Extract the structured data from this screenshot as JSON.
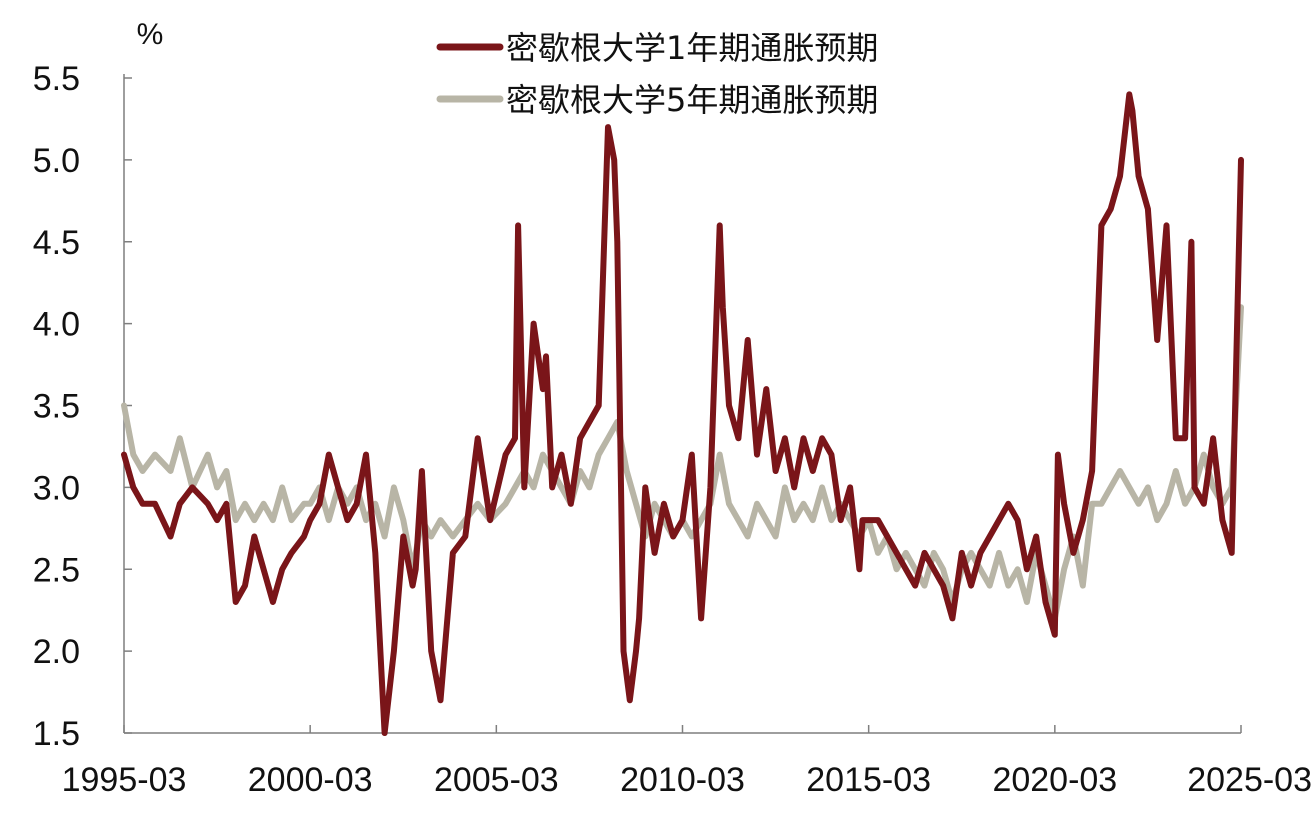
{
  "chart_data": {
    "type": "line",
    "title": "",
    "ylabel": "%",
    "xlabel": "",
    "ylim": [
      1.5,
      5.5
    ],
    "yticks": [
      "1.5",
      "2.0",
      "2.5",
      "3.0",
      "3.5",
      "4.0",
      "4.5",
      "5.0",
      "5.5"
    ],
    "xticks": [
      "1995-03",
      "2000-03",
      "2005-03",
      "2010-03",
      "2015-03",
      "2020-03",
      "2025-03"
    ],
    "xlim": [
      "1995-03",
      "2025-03"
    ],
    "legend_position": "top-center",
    "grid": false,
    "series": [
      {
        "name": "密歇根大学1年期通胀预期",
        "color": "#7a1519",
        "x": [
          "1995-03",
          "1995-06",
          "1995-09",
          "1996-01",
          "1996-06",
          "1996-09",
          "1997-01",
          "1997-06",
          "1997-09",
          "1997-12",
          "1998-03",
          "1998-06",
          "1998-09",
          "1998-12",
          "1999-03",
          "1999-06",
          "1999-09",
          "2000-01",
          "2000-03",
          "2000-06",
          "2000-09",
          "2000-12",
          "2001-03",
          "2001-06",
          "2001-09",
          "2001-10",
          "2001-12",
          "2002-03",
          "2002-06",
          "2002-09",
          "2002-12",
          "2003-01",
          "2003-03",
          "2003-06",
          "2003-09",
          "2004-01",
          "2004-05",
          "2004-09",
          "2005-01",
          "2005-06",
          "2005-09",
          "2005-10",
          "2005-12",
          "2006-03",
          "2006-06",
          "2006-07",
          "2006-09",
          "2006-12",
          "2007-03",
          "2007-06",
          "2007-09",
          "2007-12",
          "2008-03",
          "2008-05",
          "2008-06",
          "2008-08",
          "2008-10",
          "2008-12",
          "2009-01",
          "2009-03",
          "2009-06",
          "2009-09",
          "2009-12",
          "2010-03",
          "2010-06",
          "2010-09",
          "2010-12",
          "2011-03",
          "2011-04",
          "2011-06",
          "2011-09",
          "2011-12",
          "2012-03",
          "2012-06",
          "2012-09",
          "2012-12",
          "2013-03",
          "2013-06",
          "2013-09",
          "2013-12",
          "2014-03",
          "2014-06",
          "2014-09",
          "2014-12",
          "2015-01",
          "2015-06",
          "2015-09",
          "2015-12",
          "2016-03",
          "2016-06",
          "2016-09",
          "2016-12",
          "2017-03",
          "2017-06",
          "2017-09",
          "2017-12",
          "2018-03",
          "2018-06",
          "2018-09",
          "2018-12",
          "2019-03",
          "2019-06",
          "2019-09",
          "2019-12",
          "2020-03",
          "2020-04",
          "2020-06",
          "2020-09",
          "2020-12",
          "2021-03",
          "2021-06",
          "2021-09",
          "2021-12",
          "2022-03",
          "2022-04",
          "2022-06",
          "2022-09",
          "2022-12",
          "2023-03",
          "2023-06",
          "2023-09",
          "2023-11",
          "2023-12",
          "2024-03",
          "2024-06",
          "2024-09",
          "2024-12",
          "2025-03"
        ],
        "values": [
          3.2,
          3.0,
          2.9,
          2.9,
          2.7,
          2.9,
          3.0,
          2.9,
          2.8,
          2.9,
          2.3,
          2.4,
          2.7,
          2.5,
          2.3,
          2.5,
          2.6,
          2.7,
          2.8,
          2.9,
          3.2,
          3.0,
          2.8,
          2.9,
          3.2,
          3.0,
          2.6,
          1.5,
          2.0,
          2.7,
          2.4,
          2.5,
          3.1,
          2.0,
          1.7,
          2.6,
          2.7,
          3.3,
          2.8,
          3.2,
          3.3,
          4.6,
          3.0,
          4.0,
          3.6,
          3.8,
          3.0,
          3.2,
          2.9,
          3.3,
          3.4,
          3.5,
          5.2,
          5.0,
          4.5,
          2.0,
          1.7,
          2.0,
          2.2,
          3.0,
          2.6,
          2.9,
          2.7,
          2.8,
          3.2,
          2.2,
          3.0,
          4.6,
          4.1,
          3.5,
          3.3,
          3.9,
          3.2,
          3.6,
          3.1,
          3.3,
          3.0,
          3.3,
          3.1,
          3.3,
          3.2,
          2.8,
          3.0,
          2.5,
          2.8,
          2.8,
          2.7,
          2.6,
          2.5,
          2.4,
          2.6,
          2.5,
          2.4,
          2.2,
          2.6,
          2.4,
          2.6,
          2.7,
          2.8,
          2.9,
          2.8,
          2.5,
          2.7,
          2.3,
          2.1,
          3.2,
          2.9,
          2.6,
          2.8,
          3.1,
          4.6,
          4.7,
          4.9,
          5.4,
          5.3,
          4.9,
          4.7,
          3.9,
          4.6,
          3.3,
          3.3,
          4.5,
          3.0,
          2.9,
          3.3,
          2.8,
          2.6,
          5.0
        ]
      },
      {
        "name": "密歇根大学5年期通胀预期",
        "color": "#b8b5a6",
        "x": [
          "1995-03",
          "1995-06",
          "1995-09",
          "1996-01",
          "1996-06",
          "1996-09",
          "1997-01",
          "1997-06",
          "1997-09",
          "1997-12",
          "1998-03",
          "1998-06",
          "1998-09",
          "1998-12",
          "1999-03",
          "1999-06",
          "1999-09",
          "2000-01",
          "2000-03",
          "2000-06",
          "2000-09",
          "2000-12",
          "2001-03",
          "2001-06",
          "2001-09",
          "2001-12",
          "2002-03",
          "2002-06",
          "2002-09",
          "2002-12",
          "2003-03",
          "2003-06",
          "2003-09",
          "2004-01",
          "2004-05",
          "2004-09",
          "2005-01",
          "2005-06",
          "2005-09",
          "2005-12",
          "2006-03",
          "2006-06",
          "2006-09",
          "2006-12",
          "2007-03",
          "2007-06",
          "2007-09",
          "2007-12",
          "2008-03",
          "2008-06",
          "2008-09",
          "2008-12",
          "2009-03",
          "2009-06",
          "2009-09",
          "2009-12",
          "2010-03",
          "2010-06",
          "2010-09",
          "2010-12",
          "2011-03",
          "2011-06",
          "2011-09",
          "2011-12",
          "2012-03",
          "2012-06",
          "2012-09",
          "2012-12",
          "2013-03",
          "2013-06",
          "2013-09",
          "2013-12",
          "2014-03",
          "2014-06",
          "2014-09",
          "2014-12",
          "2015-03",
          "2015-06",
          "2015-09",
          "2015-12",
          "2016-03",
          "2016-06",
          "2016-09",
          "2016-12",
          "2017-03",
          "2017-06",
          "2017-09",
          "2017-12",
          "2018-03",
          "2018-06",
          "2018-09",
          "2018-12",
          "2019-03",
          "2019-06",
          "2019-09",
          "2019-12",
          "2020-03",
          "2020-06",
          "2020-09",
          "2020-12",
          "2021-03",
          "2021-06",
          "2021-09",
          "2021-12",
          "2022-03",
          "2022-06",
          "2022-09",
          "2022-12",
          "2023-03",
          "2023-06",
          "2023-09",
          "2023-12",
          "2024-03",
          "2024-06",
          "2024-09",
          "2024-12",
          "2025-03"
        ],
        "values": [
          3.5,
          3.2,
          3.1,
          3.2,
          3.1,
          3.3,
          3.0,
          3.2,
          3.0,
          3.1,
          2.8,
          2.9,
          2.8,
          2.9,
          2.8,
          3.0,
          2.8,
          2.9,
          2.9,
          3.0,
          2.8,
          3.0,
          2.9,
          3.0,
          2.8,
          2.9,
          2.7,
          3.0,
          2.8,
          2.5,
          2.8,
          2.7,
          2.8,
          2.7,
          2.8,
          2.9,
          2.8,
          2.9,
          3.0,
          3.1,
          3.0,
          3.2,
          3.1,
          3.0,
          2.9,
          3.1,
          3.0,
          3.2,
          3.3,
          3.4,
          3.1,
          2.9,
          2.7,
          2.9,
          2.8,
          2.7,
          2.8,
          2.7,
          2.8,
          2.9,
          3.2,
          2.9,
          2.8,
          2.7,
          2.9,
          2.8,
          2.7,
          3.0,
          2.8,
          2.9,
          2.8,
          3.0,
          2.8,
          2.9,
          2.8,
          2.7,
          2.8,
          2.6,
          2.7,
          2.5,
          2.6,
          2.5,
          2.4,
          2.6,
          2.5,
          2.3,
          2.5,
          2.6,
          2.5,
          2.4,
          2.6,
          2.4,
          2.5,
          2.3,
          2.6,
          2.4,
          2.2,
          2.5,
          2.7,
          2.4,
          2.9,
          2.9,
          3.0,
          3.1,
          3.0,
          2.9,
          3.0,
          2.8,
          2.9,
          3.1,
          2.9,
          3.0,
          3.2,
          3.0,
          2.9,
          3.0,
          4.1
        ]
      }
    ]
  }
}
